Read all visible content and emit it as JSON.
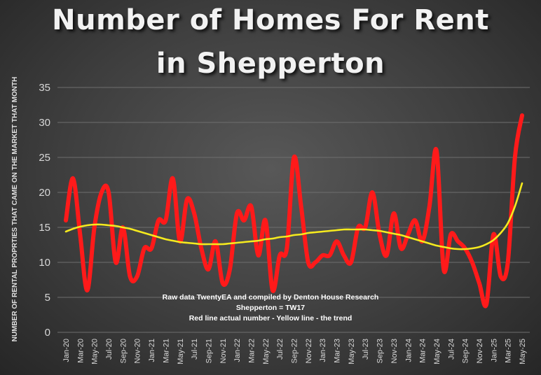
{
  "chart_data": {
    "type": "line",
    "title_line1": "Number of Homes For Rent",
    "title_line2": "in Shepperton",
    "ylabel": "NUMBER OF RENTAL PROPRTIES THAT CAME ON THE MARKET THAT MONTH",
    "ylim": [
      0,
      35
    ],
    "yticks": [
      0,
      5,
      10,
      15,
      20,
      25,
      30,
      35
    ],
    "grid": true,
    "x_labels": [
      "Jan-20",
      "Mar-20",
      "May-20",
      "Jul-20",
      "Sep-20",
      "Nov-20",
      "Jan-21",
      "Mar-21",
      "May-21",
      "Jul-21",
      "Sep-21",
      "Nov-21",
      "Jan-22",
      "Mar-22",
      "May-22",
      "Jul-22",
      "Sep-22",
      "Nov-22",
      "Jan-23",
      "Mar-23",
      "May-23",
      "Jul-23",
      "Sep-23",
      "Nov-23",
      "Jan-24",
      "Mar-24",
      "May-24",
      "Jul-24",
      "Sep-24",
      "Nov-24",
      "Jan-25",
      "Mar-25",
      "May-25"
    ],
    "series": [
      {
        "role": "actual",
        "color": "#ff1a1a",
        "values": [
          16,
          22,
          14,
          6,
          15,
          20,
          20,
          10,
          15,
          8,
          8,
          12,
          12,
          16,
          16,
          22,
          13,
          19,
          17,
          12,
          9,
          13,
          7,
          9,
          17,
          16,
          18,
          11,
          16,
          6,
          11,
          12,
          25,
          18,
          10,
          10,
          11,
          11,
          13,
          11,
          10,
          15,
          15,
          20,
          14,
          11,
          17,
          12,
          14,
          16,
          13,
          18,
          26,
          9,
          14,
          13,
          12,
          10,
          7,
          4,
          14,
          8,
          10,
          25,
          31
        ]
      },
      {
        "role": "trend",
        "color": "#f5ea1e",
        "values": [
          14.4,
          14.8,
          15.1,
          15.3,
          15.4,
          15.4,
          15.3,
          15.2,
          15.0,
          14.8,
          14.5,
          14.2,
          13.9,
          13.6,
          13.3,
          13.1,
          12.9,
          12.8,
          12.7,
          12.6,
          12.6,
          12.6,
          12.6,
          12.7,
          12.8,
          12.9,
          13.0,
          13.1,
          13.3,
          13.4,
          13.6,
          13.7,
          13.9,
          14.0,
          14.2,
          14.3,
          14.4,
          14.5,
          14.6,
          14.7,
          14.7,
          14.7,
          14.7,
          14.6,
          14.5,
          14.3,
          14.1,
          13.9,
          13.6,
          13.3,
          13.0,
          12.7,
          12.4,
          12.2,
          12.0,
          11.9,
          11.9,
          12.0,
          12.2,
          12.6,
          13.2,
          14.2,
          15.6,
          18.0,
          21.3
        ]
      }
    ],
    "annotation_lines": [
      "Raw data TwentyEA and compiled by Denton House Research",
      "Shepperton  = TW17",
      "Red line actual number - Yellow line  - the trend"
    ]
  }
}
